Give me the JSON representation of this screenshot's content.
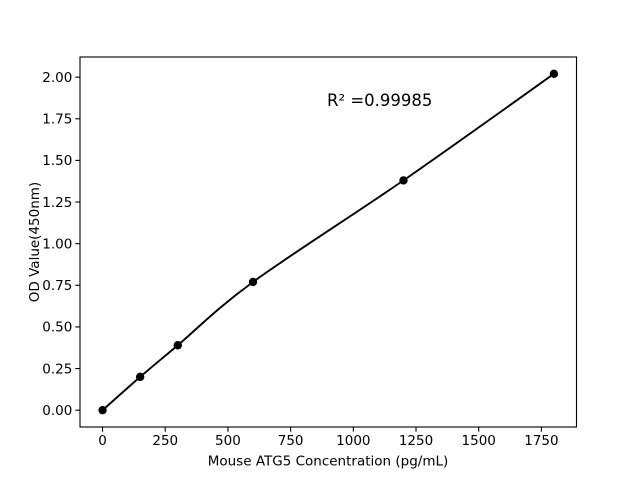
{
  "figure": {
    "background": "#ffffff"
  },
  "chart_data": {
    "type": "scatter",
    "title": "",
    "xlabel": "Mouse ATG5 Concentration (pg/mL)",
    "ylabel": "OD Value(450nm)",
    "annotation": "R² =0.99985",
    "x": [
      0,
      150,
      300,
      600,
      1200,
      1800
    ],
    "y": [
      0.0,
      0.2,
      0.39,
      0.77,
      1.38,
      2.02
    ],
    "fit_line": "smooth regression curve through all points",
    "xlim": [
      -90,
      1890
    ],
    "ylim": [
      -0.101,
      2.121
    ],
    "xticks": {
      "values": [
        0,
        250,
        500,
        750,
        1000,
        1250,
        1500,
        1750
      ],
      "labels": [
        "0",
        "250",
        "500",
        "750",
        "1000",
        "1250",
        "1500",
        "1750"
      ]
    },
    "yticks": {
      "values": [
        0.0,
        0.25,
        0.5,
        0.75,
        1.0,
        1.25,
        1.5,
        1.75,
        2.0
      ],
      "labels": [
        "0.00",
        "0.25",
        "0.50",
        "0.75",
        "1.00",
        "1.25",
        "1.50",
        "1.75",
        "2.00"
      ]
    },
    "legend": null,
    "grid": false,
    "colors": {
      "line": "#000000",
      "marker": "#000000",
      "text": "#000000",
      "spine": "#000000",
      "background": "#ffffff"
    },
    "marker": {
      "shape": "circle",
      "radius_px": 4.2
    }
  }
}
